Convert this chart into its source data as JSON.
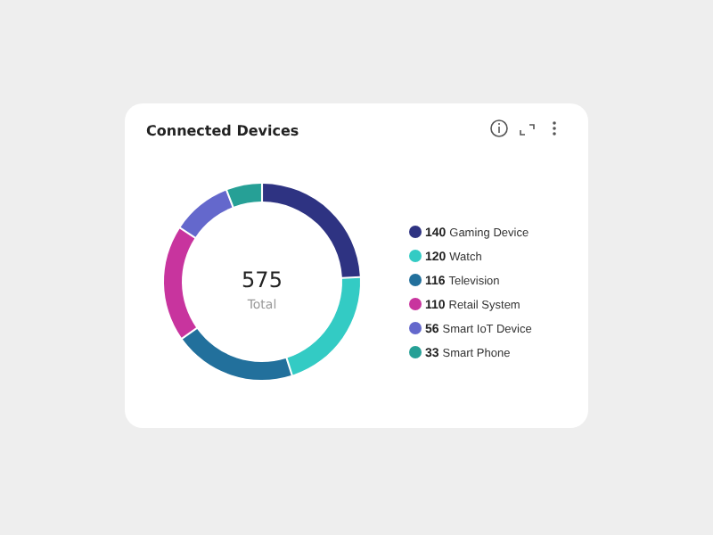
{
  "chart_data": {
    "type": "donut",
    "title": "Connected Devices",
    "categories": [
      "Gaming Device",
      "Watch",
      "Television",
      "Retail System",
      "Smart IoT Device",
      "Smart Phone"
    ],
    "values": [
      140,
      120,
      116,
      110,
      56,
      33
    ],
    "colors": [
      "#2e3382",
      "#33cbc4",
      "#22709c",
      "#c8349e",
      "#6468cc",
      "#26a096"
    ],
    "annotations": [
      "575",
      "Total"
    ],
    "data_labels": true,
    "legend": "right"
  }
}
